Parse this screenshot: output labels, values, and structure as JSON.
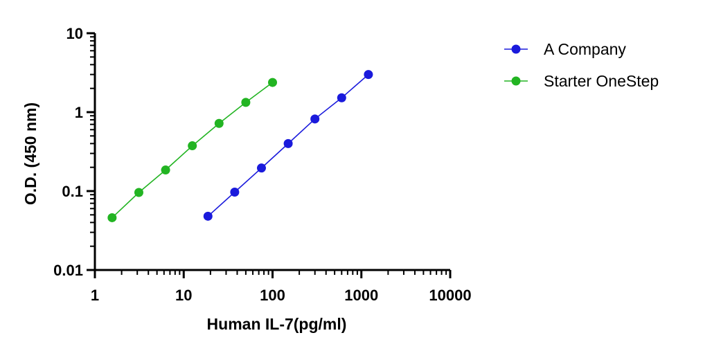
{
  "chart_data": {
    "type": "line",
    "title": "",
    "xlabel": "Human IL-7(pg/ml)",
    "ylabel": "O.D. (450 nm)",
    "x_scale": "log",
    "y_scale": "log",
    "xlim": [
      1,
      10000
    ],
    "ylim": [
      0.01,
      10
    ],
    "x_tick_labels": [
      "1",
      "10",
      "100",
      "1000",
      "10000"
    ],
    "y_tick_labels": [
      "0.01",
      "0.1",
      "1",
      "10"
    ],
    "grid": false,
    "legend_position": "top-right",
    "series": [
      {
        "name": "A Company",
        "color": "#1a1adc",
        "x": [
          18.75,
          37.5,
          75,
          150,
          300,
          600,
          1200
        ],
        "y": [
          0.048,
          0.097,
          0.196,
          0.4,
          0.82,
          1.52,
          3.0
        ]
      },
      {
        "name": "Starter OneStep",
        "color": "#22b422",
        "x": [
          1.5625,
          3.125,
          6.25,
          12.5,
          25,
          50,
          100
        ],
        "y": [
          0.046,
          0.096,
          0.185,
          0.375,
          0.72,
          1.33,
          2.38
        ]
      }
    ]
  }
}
